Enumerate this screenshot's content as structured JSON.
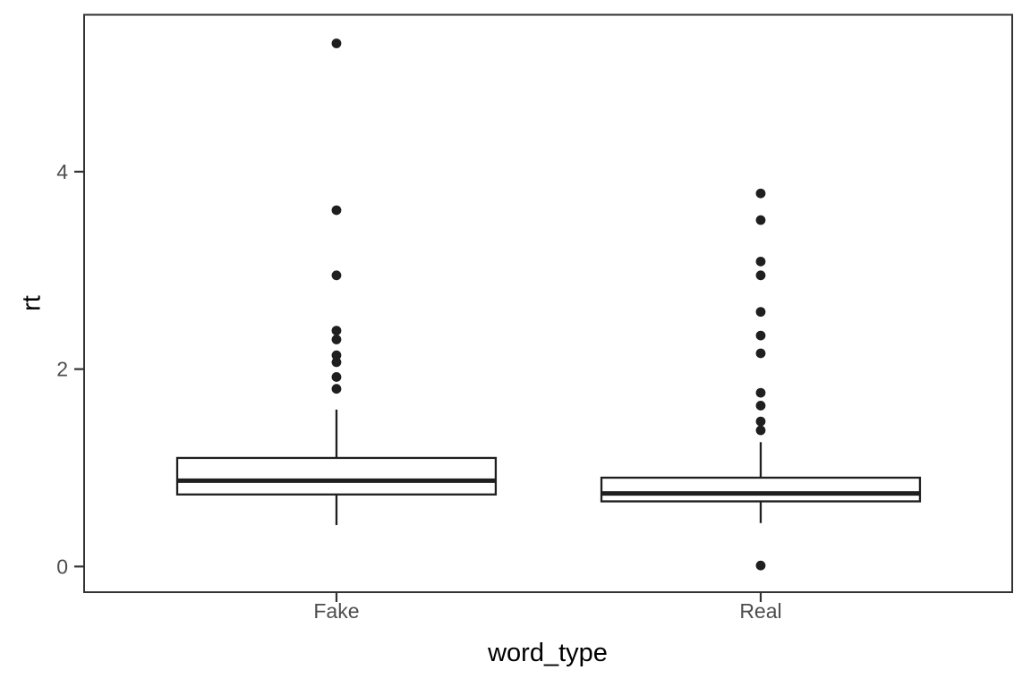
{
  "chart_data": {
    "type": "boxplot",
    "title": "",
    "xlabel": "word_type",
    "ylabel": "rt",
    "categories": [
      "Fake",
      "Real"
    ],
    "y_ticks": [
      "0",
      "2",
      "4"
    ],
    "y_tick_values": [
      0,
      2,
      4
    ],
    "ylim": [
      -0.26,
      5.59
    ],
    "grid": false,
    "legend": false,
    "series": [
      {
        "name": "Fake",
        "q1": 0.73,
        "median": 0.87,
        "q3": 1.1,
        "whisker_low": 0.42,
        "whisker_high": 1.59,
        "outliers": [
          1.8,
          1.92,
          2.07,
          2.14,
          2.3,
          2.39,
          2.95,
          3.61,
          5.3
        ]
      },
      {
        "name": "Real",
        "q1": 0.66,
        "median": 0.74,
        "q3": 0.9,
        "whisker_low": 0.44,
        "whisker_high": 1.26,
        "outliers": [
          0.01,
          1.38,
          1.47,
          1.63,
          1.76,
          2.16,
          2.34,
          2.58,
          2.95,
          3.09,
          3.51,
          3.78
        ]
      }
    ],
    "colors": {
      "background": "#ffffff",
      "panel_border": "#333333",
      "box_stroke": "#1f1f1f",
      "box_fill": "#ffffff",
      "median_stroke": "#1f1f1f",
      "outlier_fill": "#1f1f1f",
      "tick_mark": "#333333",
      "tick_label": "#4d4d4d",
      "axis_title": "#000000"
    }
  }
}
